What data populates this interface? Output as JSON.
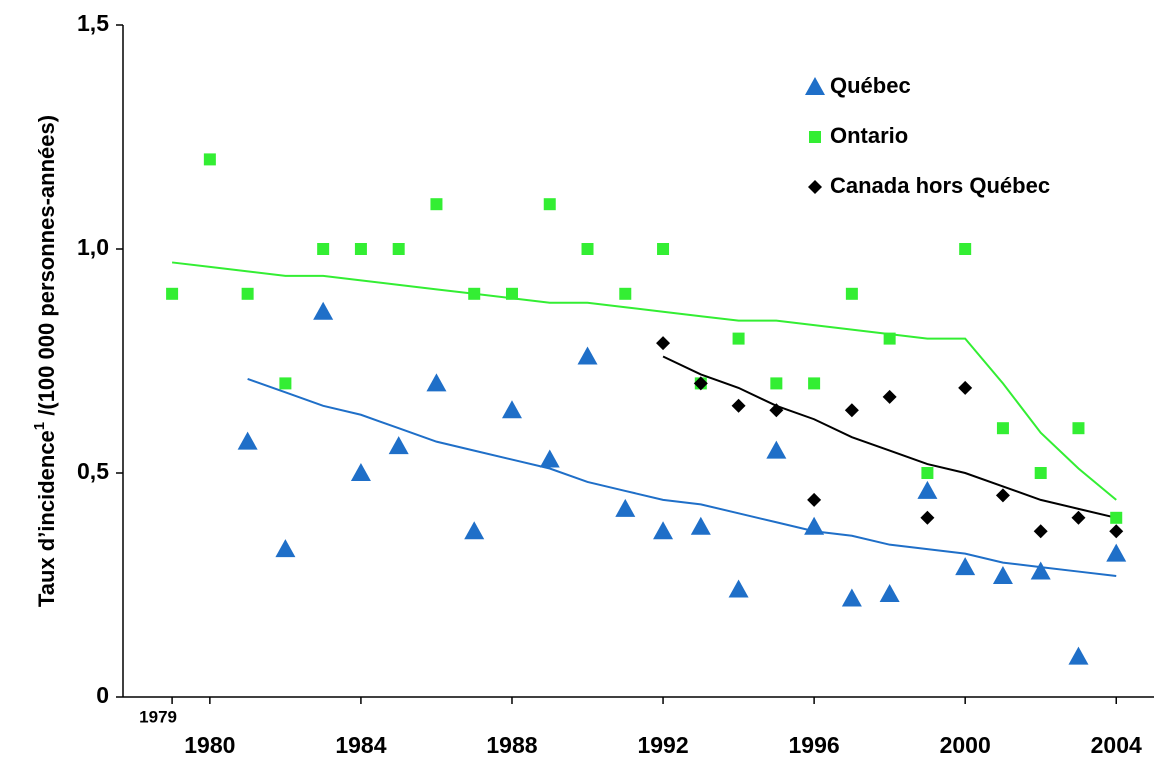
{
  "chart_data": {
    "type": "scatter",
    "ylabel": "Taux d’incidence",
    "ylabel_sup": "1",
    "ylabel_rest": " /(100 000 personnes-années)",
    "xlim": [
      1977.7,
      2005
    ],
    "xticks": [
      1980,
      1984,
      1988,
      1992,
      1996,
      2000,
      2004
    ],
    "xticks_minor": [
      1979
    ],
    "ylim": [
      0,
      1.5
    ],
    "yticks": [
      {
        "value": 0,
        "label": "0"
      },
      {
        "value": 0.5,
        "label": "0,5"
      },
      {
        "value": 1.0,
        "label": "1,0"
      },
      {
        "value": 1.5,
        "label": "1,5"
      }
    ],
    "legend": "upper right",
    "series": [
      {
        "name": "Québec",
        "color": "#1f6fc8",
        "marker": "triangle",
        "x": [
          1981,
          1982,
          1983,
          1984,
          1985,
          1986,
          1987,
          1988,
          1989,
          1990,
          1991,
          1992,
          1993,
          1994,
          1995,
          1996,
          1997,
          1998,
          1999,
          2000,
          2001,
          2002,
          2003,
          2004
        ],
        "values": [
          0.57,
          0.33,
          0.86,
          0.5,
          0.56,
          0.7,
          0.37,
          0.64,
          0.53,
          0.76,
          0.42,
          0.37,
          0.38,
          0.24,
          0.55,
          0.38,
          0.22,
          0.23,
          0.46,
          0.29,
          0.27,
          0.28,
          0.09,
          0.32
        ],
        "trend": [
          0.71,
          0.68,
          0.65,
          0.63,
          0.6,
          0.57,
          0.55,
          0.53,
          0.51,
          0.48,
          0.46,
          0.44,
          0.43,
          0.41,
          0.39,
          0.37,
          0.36,
          0.34,
          0.33,
          0.32,
          0.3,
          0.29,
          0.28,
          0.27
        ]
      },
      {
        "name": "Ontario",
        "color": "#33ee33",
        "marker": "square",
        "x": [
          1979,
          1980,
          1981,
          1982,
          1983,
          1984,
          1985,
          1986,
          1987,
          1988,
          1989,
          1990,
          1991,
          1992,
          1993,
          1994,
          1995,
          1996,
          1997,
          1998,
          1999,
          2000,
          2001,
          2002,
          2003,
          2004
        ],
        "values": [
          0.9,
          1.2,
          0.9,
          0.7,
          1.0,
          1.0,
          1.0,
          1.1,
          0.9,
          0.9,
          1.1,
          1.0,
          0.9,
          1.0,
          0.7,
          0.8,
          0.7,
          0.7,
          0.9,
          0.8,
          0.5,
          1.0,
          0.6,
          0.5,
          0.6,
          0.4
        ],
        "trend": [
          0.97,
          0.96,
          0.95,
          0.94,
          0.94,
          0.93,
          0.92,
          0.91,
          0.9,
          0.89,
          0.88,
          0.88,
          0.87,
          0.86,
          0.85,
          0.84,
          0.84,
          0.83,
          0.82,
          0.81,
          0.8,
          0.8,
          0.7,
          0.59,
          0.51,
          0.44
        ]
      },
      {
        "name": "Canada hors Québec",
        "color": "#000000",
        "marker": "diamond",
        "x": [
          1992,
          1993,
          1994,
          1995,
          1996,
          1997,
          1998,
          1999,
          2000,
          2001,
          2002,
          2003,
          2004
        ],
        "values": [
          0.79,
          0.7,
          0.65,
          0.64,
          0.44,
          0.64,
          0.67,
          0.4,
          0.69,
          0.45,
          0.37,
          0.4,
          0.37
        ],
        "trend": [
          0.76,
          0.72,
          0.69,
          0.65,
          0.62,
          0.58,
          0.55,
          0.52,
          0.5,
          0.47,
          0.44,
          0.42,
          0.4
        ]
      }
    ]
  }
}
